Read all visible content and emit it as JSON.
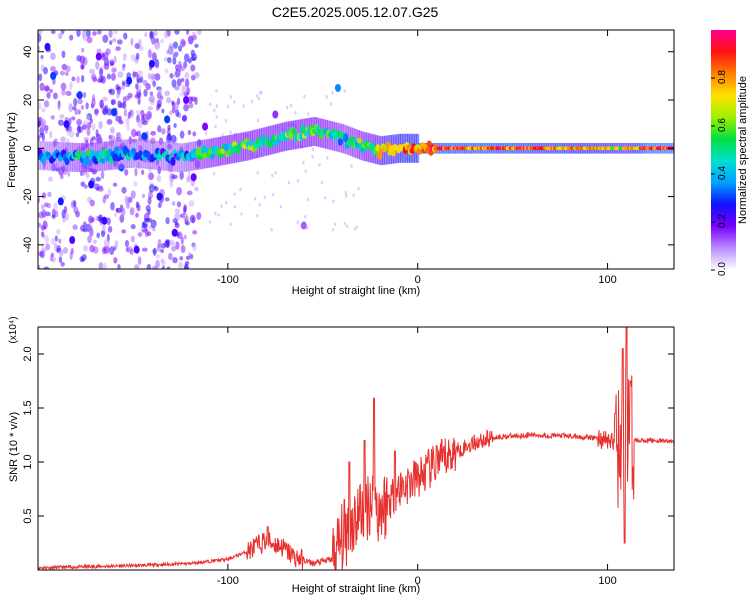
{
  "title": "C2E5.2025.005.12.07.G25",
  "chart_data": [
    {
      "type": "heatmap",
      "name": "spectrogram",
      "xlabel": "Height of straight line (km)",
      "ylabel": "Frequency (Hz)",
      "xlim": [
        -200,
        135
      ],
      "ylim": [
        -50,
        49
      ],
      "xticks": [
        -100,
        0,
        100
      ],
      "xtick_labels": [
        "-100",
        "0",
        "100"
      ],
      "yticks": [
        -40,
        -20,
        0,
        20,
        40
      ],
      "ytick_labels": [
        "-40",
        "-20",
        "0",
        "20",
        "40"
      ],
      "colorbar": {
        "label": "Normalized spectral amplitude",
        "range": [
          0,
          1
        ],
        "ticks": [
          0.0,
          0.2,
          0.4,
          0.6,
          0.8
        ],
        "tick_labels": [
          "0.0",
          "0.2",
          "0.4",
          "0.6",
          "0.8"
        ],
        "colors": [
          "#ffffff",
          "#b98cff",
          "#7a00ff",
          "#1010ff",
          "#00a0ff",
          "#00e0d0",
          "#00e040",
          "#a0f000",
          "#ffe000",
          "#ff8000",
          "#ff1010",
          "#ff0090"
        ]
      },
      "ridge": [
        {
          "x": -200,
          "f": -3,
          "a": 0.3
        },
        {
          "x": -175,
          "f": -4,
          "a": 0.45
        },
        {
          "x": -150,
          "f": -2,
          "a": 0.35
        },
        {
          "x": -125,
          "f": -4,
          "a": 0.35
        },
        {
          "x": -110,
          "f": -2,
          "a": 0.5
        },
        {
          "x": -90,
          "f": 1,
          "a": 0.55
        },
        {
          "x": -70,
          "f": 5,
          "a": 0.55
        },
        {
          "x": -55,
          "f": 7,
          "a": 0.55
        },
        {
          "x": -40,
          "f": 4,
          "a": 0.45
        },
        {
          "x": -30,
          "f": 1,
          "a": 0.5
        },
        {
          "x": -20,
          "f": -1,
          "a": 0.65
        },
        {
          "x": -10,
          "f": 0,
          "a": 0.75
        },
        {
          "x": 10,
          "f": 0,
          "a": 0.85
        },
        {
          "x": 40,
          "f": 0,
          "a": 0.85
        },
        {
          "x": 70,
          "f": 0,
          "a": 0.8
        },
        {
          "x": 100,
          "f": 0,
          "a": 0.75
        },
        {
          "x": 108,
          "f": 0,
          "a": 0.6
        },
        {
          "x": 120,
          "f": 0,
          "a": 0.92
        },
        {
          "x": 135,
          "f": 0,
          "a": 0.92
        }
      ],
      "scatter_blobs": [
        {
          "x": -195,
          "f": 42,
          "a": 0.25
        },
        {
          "x": -192,
          "f": 30,
          "a": 0.3
        },
        {
          "x": -188,
          "f": -22,
          "a": 0.28
        },
        {
          "x": -185,
          "f": 10,
          "a": 0.25
        },
        {
          "x": -182,
          "f": -38,
          "a": 0.22
        },
        {
          "x": -178,
          "f": 22,
          "a": 0.3
        },
        {
          "x": -172,
          "f": -15,
          "a": 0.26
        },
        {
          "x": -168,
          "f": 38,
          "a": 0.2
        },
        {
          "x": -165,
          "f": -30,
          "a": 0.24
        },
        {
          "x": -160,
          "f": 15,
          "a": 0.3
        },
        {
          "x": -156,
          "f": -8,
          "a": 0.32
        },
        {
          "x": -152,
          "f": 28,
          "a": 0.28
        },
        {
          "x": -148,
          "f": -42,
          "a": 0.22
        },
        {
          "x": -144,
          "f": 5,
          "a": 0.3
        },
        {
          "x": -140,
          "f": 35,
          "a": 0.26
        },
        {
          "x": -136,
          "f": -20,
          "a": 0.25
        },
        {
          "x": -132,
          "f": 12,
          "a": 0.3
        },
        {
          "x": -128,
          "f": -35,
          "a": 0.22
        },
        {
          "x": -122,
          "f": 20,
          "a": 0.2
        },
        {
          "x": -118,
          "f": -12,
          "a": 0.2
        },
        {
          "x": -112,
          "f": 9,
          "a": 0.18
        },
        {
          "x": -60,
          "f": -32,
          "a": 0.12
        },
        {
          "x": -42,
          "f": 25,
          "a": 0.35
        },
        {
          "x": -75,
          "f": 14,
          "a": 0.15
        }
      ]
    },
    {
      "type": "line",
      "name": "snr",
      "xlabel": "Height of straight line (km)",
      "ylabel": "SNR (10 * v/v)",
      "scale_label": "(x10⁴)",
      "xlim": [
        -200,
        135
      ],
      "ylim": [
        0,
        2.25
      ],
      "xticks": [
        -100,
        0,
        100
      ],
      "xtick_labels": [
        "-100",
        "0",
        "100"
      ],
      "yticks": [
        0.5,
        1.0,
        1.5,
        2.0
      ],
      "ytick_labels": [
        "0.5",
        "1.0",
        "1.5",
        "2.0"
      ],
      "color": "#e8312f",
      "series": [
        {
          "x": -200,
          "y": 0.02
        },
        {
          "x": -150,
          "y": 0.04
        },
        {
          "x": -120,
          "y": 0.06
        },
        {
          "x": -100,
          "y": 0.1
        },
        {
          "x": -90,
          "y": 0.17
        },
        {
          "x": -80,
          "y": 0.27
        },
        {
          "x": -72,
          "y": 0.22
        },
        {
          "x": -65,
          "y": 0.12
        },
        {
          "x": -55,
          "y": 0.06
        },
        {
          "x": -45,
          "y": 0.1
        },
        {
          "x": -38,
          "y": 0.35
        },
        {
          "x": -30,
          "y": 0.55
        },
        {
          "x": -25,
          "y": 0.65
        },
        {
          "x": -20,
          "y": 0.55
        },
        {
          "x": -10,
          "y": 0.75
        },
        {
          "x": 0,
          "y": 0.85
        },
        {
          "x": 10,
          "y": 0.98
        },
        {
          "x": 20,
          "y": 1.1
        },
        {
          "x": 30,
          "y": 1.18
        },
        {
          "x": 40,
          "y": 1.23
        },
        {
          "x": 60,
          "y": 1.25
        },
        {
          "x": 80,
          "y": 1.24
        },
        {
          "x": 95,
          "y": 1.22
        },
        {
          "x": 100,
          "y": 1.2
        },
        {
          "x": 106,
          "y": 1.15
        },
        {
          "x": 110,
          "y": 1.25
        },
        {
          "x": 114,
          "y": 1.2
        },
        {
          "x": 120,
          "y": 1.2
        },
        {
          "x": 135,
          "y": 1.19
        }
      ],
      "spikes": [
        {
          "x": -79,
          "y": 0.4
        },
        {
          "x": -36,
          "y": 1.0
        },
        {
          "x": -28,
          "y": 1.2
        },
        {
          "x": -23,
          "y": 1.59
        },
        {
          "x": -12,
          "y": 1.1
        },
        {
          "x": 10,
          "y": 1.15
        },
        {
          "x": 104,
          "y": 1.45
        },
        {
          "x": 108,
          "y": 2.05
        },
        {
          "x": 109,
          "y": 0.25
        },
        {
          "x": 110,
          "y": 2.25
        },
        {
          "x": 112,
          "y": 1.75
        }
      ]
    }
  ]
}
